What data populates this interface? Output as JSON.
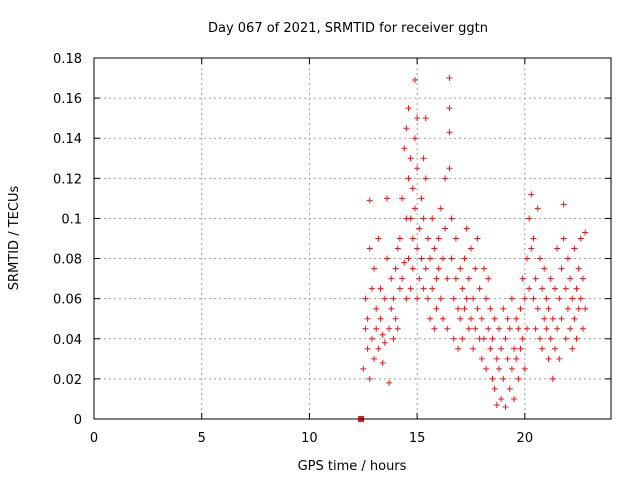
{
  "chart_data": {
    "type": "scatter",
    "title": "Day 067 of 2021, SRMTID for receiver ggtn",
    "xlabel": "GPS time / hours",
    "ylabel": "SRMTID / TECUs",
    "xlim": [
      0,
      24
    ],
    "ylim": [
      0,
      0.18
    ],
    "xticks": [
      0,
      5,
      10,
      15,
      20
    ],
    "xtick_labels": [
      "0",
      "5",
      "10",
      "15",
      "20"
    ],
    "yticks": [
      0,
      0.02,
      0.04,
      0.06,
      0.08,
      0.1,
      0.12,
      0.14,
      0.16,
      0.18
    ],
    "ytick_labels": [
      "0",
      "0.02",
      "0.04",
      "0.06",
      "0.08",
      "0.1",
      "0.12",
      "0.14",
      "0.16",
      "0.18"
    ],
    "grid": true,
    "color": "#e31a1c",
    "series": [
      {
        "name": "SRMTID",
        "marker": "plus",
        "points": [
          [
            12.5,
            0.025
          ],
          [
            12.6,
            0.045
          ],
          [
            12.6,
            0.06
          ],
          [
            12.7,
            0.035
          ],
          [
            12.7,
            0.05
          ],
          [
            12.8,
            0.02
          ],
          [
            12.8,
            0.085
          ],
          [
            12.8,
            0.109
          ],
          [
            12.9,
            0.04
          ],
          [
            12.9,
            0.065
          ],
          [
            13.0,
            0.03
          ],
          [
            13.0,
            0.075
          ],
          [
            13.1,
            0.045
          ],
          [
            13.1,
            0.055
          ],
          [
            13.2,
            0.035
          ],
          [
            13.2,
            0.09
          ],
          [
            13.3,
            0.05
          ],
          [
            13.3,
            0.065
          ],
          [
            13.4,
            0.028
          ],
          [
            13.4,
            0.042
          ],
          [
            13.5,
            0.038
          ],
          [
            13.5,
            0.06
          ],
          [
            13.6,
            0.11
          ],
          [
            13.6,
            0.08
          ],
          [
            13.7,
            0.045
          ],
          [
            13.7,
            0.018
          ],
          [
            13.8,
            0.055
          ],
          [
            13.8,
            0.07
          ],
          [
            13.9,
            0.04
          ],
          [
            13.9,
            0.06
          ],
          [
            14.0,
            0.05
          ],
          [
            14.0,
            0.075
          ],
          [
            14.1,
            0.045
          ],
          [
            14.1,
            0.085
          ],
          [
            14.2,
            0.065
          ],
          [
            14.2,
            0.09
          ],
          [
            14.3,
            0.07
          ],
          [
            14.3,
            0.11
          ],
          [
            14.4,
            0.078
          ],
          [
            14.4,
            0.135
          ],
          [
            14.5,
            0.06
          ],
          [
            14.5,
            0.1
          ],
          [
            14.5,
            0.145
          ],
          [
            14.6,
            0.155
          ],
          [
            14.6,
            0.12
          ],
          [
            14.6,
            0.08
          ],
          [
            14.7,
            0.1
          ],
          [
            14.7,
            0.13
          ],
          [
            14.7,
            0.065
          ],
          [
            14.8,
            0.115
          ],
          [
            14.8,
            0.075
          ],
          [
            14.8,
            0.09
          ],
          [
            14.9,
            0.169
          ],
          [
            14.9,
            0.14
          ],
          [
            14.9,
            0.105
          ],
          [
            15.0,
            0.15
          ],
          [
            15.0,
            0.125
          ],
          [
            15.0,
            0.085
          ],
          [
            15.0,
            0.06
          ],
          [
            15.1,
            0.095
          ],
          [
            15.1,
            0.07
          ],
          [
            15.2,
            0.11
          ],
          [
            15.2,
            0.08
          ],
          [
            15.3,
            0.13
          ],
          [
            15.3,
            0.1
          ],
          [
            15.3,
            0.065
          ],
          [
            15.4,
            0.15
          ],
          [
            15.4,
            0.12
          ],
          [
            15.4,
            0.075
          ],
          [
            15.5,
            0.09
          ],
          [
            15.5,
            0.06
          ],
          [
            15.6,
            0.08
          ],
          [
            15.6,
            0.05
          ],
          [
            15.7,
            0.1
          ],
          [
            15.7,
            0.065
          ],
          [
            15.8,
            0.085
          ],
          [
            15.8,
            0.045
          ],
          [
            15.9,
            0.07
          ],
          [
            15.9,
            0.055
          ],
          [
            16.0,
            0.09
          ],
          [
            16.0,
            0.075
          ],
          [
            16.1,
            0.105
          ],
          [
            16.1,
            0.06
          ],
          [
            16.2,
            0.08
          ],
          [
            16.2,
            0.05
          ],
          [
            16.3,
            0.12
          ],
          [
            16.3,
            0.095
          ],
          [
            16.4,
            0.07
          ],
          [
            16.4,
            0.045
          ],
          [
            16.5,
            0.17
          ],
          [
            16.5,
            0.155
          ],
          [
            16.5,
            0.143
          ],
          [
            16.5,
            0.125
          ],
          [
            16.6,
            0.1
          ],
          [
            16.6,
            0.08
          ],
          [
            16.7,
            0.06
          ],
          [
            16.7,
            0.04
          ],
          [
            16.8,
            0.09
          ],
          [
            16.8,
            0.07
          ],
          [
            16.9,
            0.055
          ],
          [
            16.9,
            0.035
          ],
          [
            17.0,
            0.075
          ],
          [
            17.0,
            0.05
          ],
          [
            17.1,
            0.065
          ],
          [
            17.1,
            0.04
          ],
          [
            17.2,
            0.08
          ],
          [
            17.2,
            0.055
          ],
          [
            17.3,
            0.095
          ],
          [
            17.3,
            0.06
          ],
          [
            17.4,
            0.045
          ],
          [
            17.4,
            0.07
          ],
          [
            17.5,
            0.085
          ],
          [
            17.5,
            0.05
          ],
          [
            17.6,
            0.035
          ],
          [
            17.6,
            0.06
          ],
          [
            17.7,
            0.075
          ],
          [
            17.7,
            0.045
          ],
          [
            17.8,
            0.09
          ],
          [
            17.8,
            0.055
          ],
          [
            17.9,
            0.04
          ],
          [
            17.9,
            0.065
          ],
          [
            18.0,
            0.03
          ],
          [
            18.0,
            0.05
          ],
          [
            18.1,
            0.075
          ],
          [
            18.1,
            0.04
          ],
          [
            18.2,
            0.06
          ],
          [
            18.2,
            0.025
          ],
          [
            18.3,
            0.045
          ],
          [
            18.3,
            0.07
          ],
          [
            18.4,
            0.035
          ],
          [
            18.4,
            0.055
          ],
          [
            18.5,
            0.02
          ],
          [
            18.5,
            0.04
          ],
          [
            18.6,
            0.015
          ],
          [
            18.6,
            0.05
          ],
          [
            18.7,
            0.03
          ],
          [
            18.7,
            0.007
          ],
          [
            18.8,
            0.045
          ],
          [
            18.8,
            0.025
          ],
          [
            18.9,
            0.01
          ],
          [
            18.9,
            0.035
          ],
          [
            19.0,
            0.055
          ],
          [
            19.0,
            0.02
          ],
          [
            19.1,
            0.04
          ],
          [
            19.1,
            0.006
          ],
          [
            19.2,
            0.03
          ],
          [
            19.2,
            0.05
          ],
          [
            19.3,
            0.015
          ],
          [
            19.3,
            0.045
          ],
          [
            19.4,
            0.025
          ],
          [
            19.4,
            0.06
          ],
          [
            19.5,
            0.035
          ],
          [
            19.5,
            0.01
          ],
          [
            19.6,
            0.05
          ],
          [
            19.6,
            0.03
          ],
          [
            19.7,
            0.045
          ],
          [
            19.7,
            0.02
          ],
          [
            19.8,
            0.055
          ],
          [
            19.8,
            0.035
          ],
          [
            19.9,
            0.07
          ],
          [
            19.9,
            0.04
          ],
          [
            20.0,
            0.06
          ],
          [
            20.0,
            0.025
          ],
          [
            20.1,
            0.08
          ],
          [
            20.1,
            0.045
          ],
          [
            20.2,
            0.1
          ],
          [
            20.2,
            0.065
          ],
          [
            20.3,
            0.112
          ],
          [
            20.3,
            0.085
          ],
          [
            20.4,
            0.09
          ],
          [
            20.4,
            0.06
          ],
          [
            20.5,
            0.07
          ],
          [
            20.5,
            0.045
          ],
          [
            20.6,
            0.105
          ],
          [
            20.6,
            0.055
          ],
          [
            20.7,
            0.08
          ],
          [
            20.7,
            0.04
          ],
          [
            20.8,
            0.065
          ],
          [
            20.8,
            0.035
          ],
          [
            20.9,
            0.05
          ],
          [
            20.9,
            0.075
          ],
          [
            21.0,
            0.045
          ],
          [
            21.0,
            0.06
          ],
          [
            21.1,
            0.03
          ],
          [
            21.1,
            0.055
          ],
          [
            21.2,
            0.04
          ],
          [
            21.2,
            0.07
          ],
          [
            21.3,
            0.02
          ],
          [
            21.3,
            0.05
          ],
          [
            21.4,
            0.065
          ],
          [
            21.4,
            0.035
          ],
          [
            21.5,
            0.045
          ],
          [
            21.5,
            0.085
          ],
          [
            21.6,
            0.06
          ],
          [
            21.6,
            0.03
          ],
          [
            21.7,
            0.075
          ],
          [
            21.7,
            0.05
          ],
          [
            21.8,
            0.107
          ],
          [
            21.8,
            0.09
          ],
          [
            21.9,
            0.065
          ],
          [
            21.9,
            0.04
          ],
          [
            22.0,
            0.055
          ],
          [
            22.0,
            0.08
          ],
          [
            22.1,
            0.045
          ],
          [
            22.1,
            0.07
          ],
          [
            22.2,
            0.06
          ],
          [
            22.2,
            0.035
          ],
          [
            22.3,
            0.085
          ],
          [
            22.3,
            0.05
          ],
          [
            22.4,
            0.065
          ],
          [
            22.4,
            0.04
          ],
          [
            22.5,
            0.075
          ],
          [
            22.5,
            0.055
          ],
          [
            22.6,
            0.09
          ],
          [
            22.6,
            0.06
          ],
          [
            22.7,
            0.045
          ],
          [
            22.7,
            0.07
          ],
          [
            22.8,
            0.093
          ],
          [
            22.8,
            0.055
          ]
        ]
      },
      {
        "name": "start-marker",
        "marker": "square",
        "points": [
          [
            12.4,
            0.0
          ]
        ]
      }
    ]
  }
}
